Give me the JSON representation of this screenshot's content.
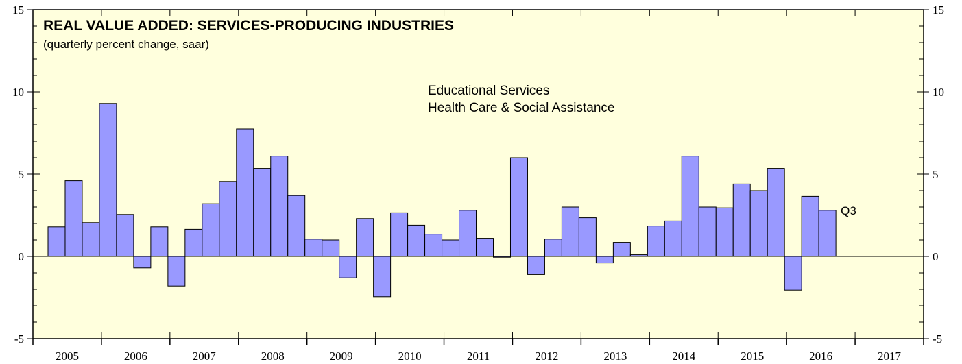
{
  "chart_data": {
    "type": "bar",
    "title": "REAL VALUE ADDED: SERVICES-PRODUCING INDUSTRIES",
    "subtitle": "(quarterly percent change, saar)",
    "series_labels": [
      "Educational Services",
      "Health Care & Social Assistance"
    ],
    "annotation": "Q3",
    "ylim": [
      -5,
      15
    ],
    "yticks": [
      "-5",
      "0",
      "5",
      "10",
      "15"
    ],
    "years": [
      "2005",
      "2006",
      "2007",
      "2008",
      "2009",
      "2010",
      "2011",
      "2012",
      "2013",
      "2014",
      "2015",
      "2016",
      "2017"
    ],
    "quarters_per_year": 4,
    "values": [
      1.8,
      4.6,
      2.05,
      9.3,
      2.55,
      -0.7,
      1.8,
      -1.8,
      1.65,
      3.2,
      4.55,
      7.75,
      5.35,
      6.1,
      3.7,
      1.05,
      1.0,
      -1.3,
      2.3,
      -2.45,
      2.65,
      1.9,
      1.35,
      1.0,
      2.8,
      1.1,
      -0.05,
      6.0,
      -1.1,
      1.05,
      3.0,
      2.35,
      -0.4,
      0.85,
      0.1,
      1.85,
      2.15,
      6.1,
      3.0,
      2.95,
      4.4,
      4.0,
      5.35,
      -2.05,
      3.65,
      2.8
    ],
    "colors": {
      "bar_fill": "#9999ff",
      "bar_stroke": "#000000",
      "plot_bg": "#ffffdd",
      "frame": "#000000"
    }
  }
}
